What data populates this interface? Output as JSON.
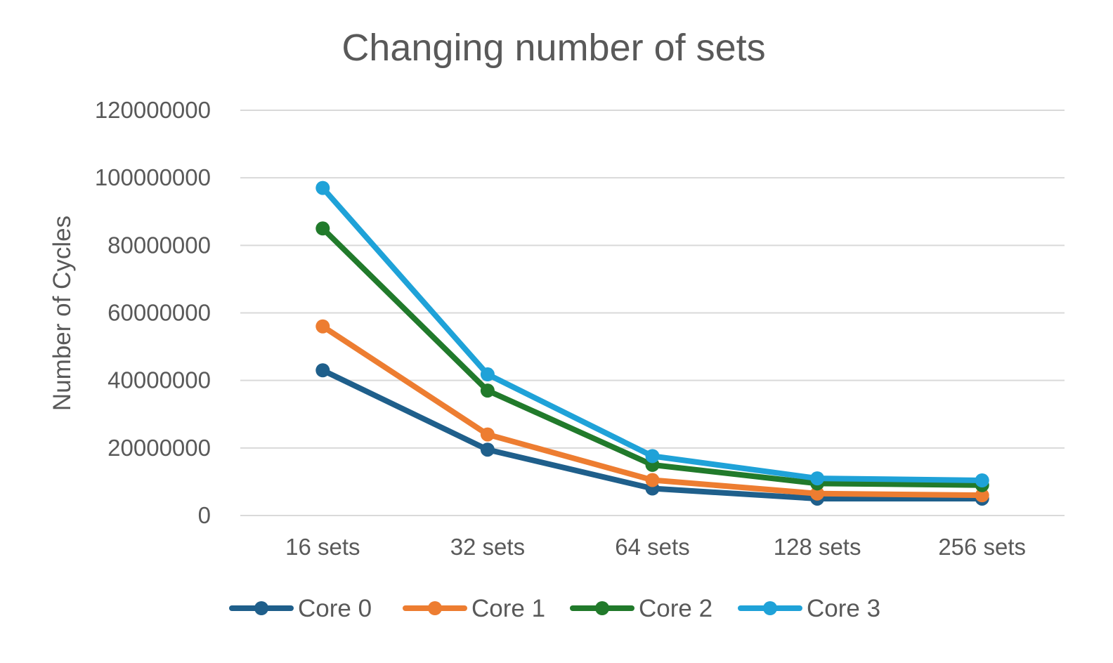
{
  "chart_data": {
    "type": "line",
    "title": "Changing number of sets",
    "xlabel": "",
    "ylabel": "Number of Cycles",
    "categories": [
      "16 sets",
      "32 sets",
      "64 sets",
      "128 sets",
      "256 sets"
    ],
    "ylim": [
      0,
      120000000
    ],
    "yticks": [
      "0",
      "20000000",
      "40000000",
      "60000000",
      "80000000",
      "100000000",
      "120000000"
    ],
    "grid": true,
    "legend_position": "bottom",
    "series": [
      {
        "name": "Core 0",
        "color": "#1f5f8b",
        "values": [
          43000000,
          19500000,
          8000000,
          5000000,
          5000000
        ]
      },
      {
        "name": "Core 1",
        "color": "#ed7d31",
        "values": [
          56000000,
          24000000,
          10500000,
          6500000,
          6000000
        ]
      },
      {
        "name": "Core 2",
        "color": "#217a2b",
        "values": [
          85000000,
          37000000,
          15000000,
          9500000,
          9000000
        ]
      },
      {
        "name": "Core 3",
        "color": "#1fa2d8",
        "values": [
          97000000,
          41800000,
          17600000,
          11000000,
          10400000
        ]
      }
    ]
  }
}
